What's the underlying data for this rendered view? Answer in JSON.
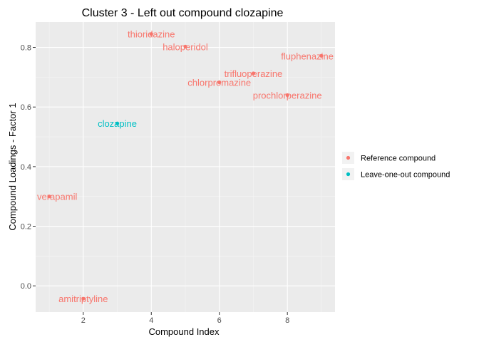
{
  "chart_data": {
    "type": "scatter",
    "title": "Cluster 3 - Left out compound clozapine",
    "xlabel": "Compound Index",
    "ylabel": "Compound Loadings - Factor 1",
    "xlim": [
      0.6,
      9.4
    ],
    "ylim": [
      -0.088,
      0.885
    ],
    "x_ticks": [
      2,
      4,
      6,
      8
    ],
    "y_ticks": [
      0.0,
      0.2,
      0.4,
      0.6,
      0.8
    ],
    "x_tick_labels": [
      "2",
      "4",
      "6",
      "8"
    ],
    "y_tick_labels": [
      "0.0",
      "0.2",
      "0.4",
      "0.6",
      "0.8"
    ],
    "grid": true,
    "legend_placement": "right",
    "series": [
      {
        "name": "Reference compound",
        "color": "#F8766D",
        "points": [
          {
            "x": 1,
            "y": 0.3,
            "label": "verapamil"
          },
          {
            "x": 2,
            "y": -0.043,
            "label": "amitriptyline"
          },
          {
            "x": 4,
            "y": 0.845,
            "label": "thioridazine"
          },
          {
            "x": 5,
            "y": 0.803,
            "label": "haloperidol"
          },
          {
            "x": 6,
            "y": 0.683,
            "label": "chlorpromazine"
          },
          {
            "x": 7,
            "y": 0.713,
            "label": "trifluoperazine"
          },
          {
            "x": 8,
            "y": 0.64,
            "label": "prochlorperazine"
          },
          {
            "x": 9,
            "y": 0.772,
            "label": "fluphenazine"
          }
        ]
      },
      {
        "name": "Leave-one-out compound",
        "color": "#00BFC4",
        "points": [
          {
            "x": 3,
            "y": 0.545,
            "label": "clozapine"
          }
        ]
      }
    ]
  }
}
